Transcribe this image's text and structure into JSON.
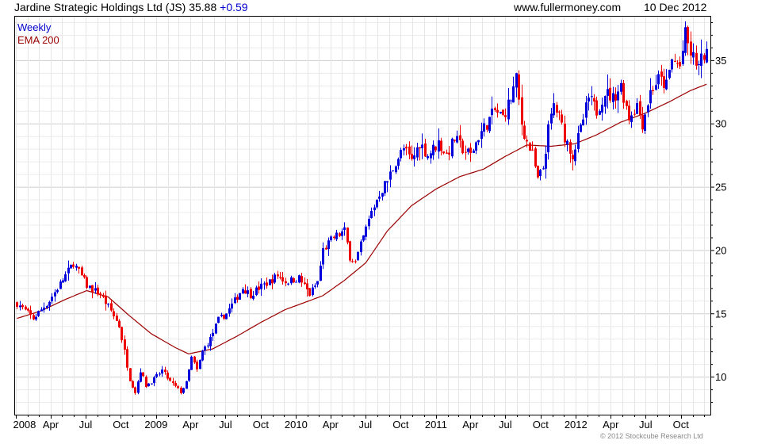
{
  "header": {
    "symbol_text": "Jardine Strategic Holdings Ltd (JS) 35.88",
    "change_text": "+0.59",
    "site": "www.fullermoney.com",
    "date": "10 Dec 2012"
  },
  "legend": {
    "weekly": "Weekly",
    "ema": "EMA 200"
  },
  "copyright": "© 2012 Stockcube Research Ltd",
  "colors": {
    "up": "#0000dd",
    "down": "#ee0000",
    "ema": "#9b0000",
    "grid": "#dcdcdc",
    "axis": "#000000"
  },
  "chart_data": {
    "type": "candlestick",
    "interval": "weekly",
    "y_ticks": [
      10,
      15,
      20,
      25,
      30,
      35
    ],
    "ylim": [
      7,
      38.5
    ],
    "x_tick_labels": [
      "2008",
      "Apr",
      "Jul",
      "Oct",
      "2009",
      "Apr",
      "Jul",
      "Oct",
      "2010",
      "Apr",
      "Jul",
      "Oct",
      "2011",
      "Apr",
      "Jul",
      "Oct",
      "2012",
      "Apr",
      "Jul",
      "Oct"
    ],
    "close_anchors": [
      [
        "2008-01-04",
        15.8
      ],
      [
        "2008-02-15",
        14.6
      ],
      [
        "2008-03-28",
        16.0
      ],
      [
        "2008-05-09",
        18.0
      ],
      [
        "2008-05-30",
        19.0
      ],
      [
        "2008-07-04",
        17.2
      ],
      [
        "2008-08-08",
        16.5
      ],
      [
        "2008-09-05",
        15.2
      ],
      [
        "2008-09-26",
        14.0
      ],
      [
        "2008-10-10",
        12.0
      ],
      [
        "2008-10-24",
        9.8
      ],
      [
        "2008-11-07",
        8.8
      ],
      [
        "2008-11-21",
        10.5
      ],
      [
        "2008-12-05",
        9.3
      ],
      [
        "2008-12-26",
        9.8
      ],
      [
        "2009-01-16",
        10.5
      ],
      [
        "2009-02-06",
        9.6
      ],
      [
        "2009-03-06",
        8.8
      ],
      [
        "2009-03-20",
        9.5
      ],
      [
        "2009-04-03",
        11.5
      ],
      [
        "2009-04-17",
        10.5
      ],
      [
        "2009-05-01",
        12.0
      ],
      [
        "2009-05-22",
        13.0
      ],
      [
        "2009-06-12",
        14.5
      ],
      [
        "2009-07-03",
        15.0
      ],
      [
        "2009-07-24",
        16.0
      ],
      [
        "2009-08-14",
        17.0
      ],
      [
        "2009-09-04",
        16.5
      ],
      [
        "2009-09-25",
        17.0
      ],
      [
        "2009-10-23",
        17.5
      ],
      [
        "2009-11-13",
        18.0
      ],
      [
        "2009-12-04",
        17.5
      ],
      [
        "2010-01-08",
        17.8
      ],
      [
        "2010-02-05",
        16.5
      ],
      [
        "2010-02-26",
        17.5
      ],
      [
        "2010-03-12",
        20.0
      ],
      [
        "2010-04-09",
        21.0
      ],
      [
        "2010-05-07",
        21.5
      ],
      [
        "2010-05-21",
        19.5
      ],
      [
        "2010-06-04",
        19.0
      ],
      [
        "2010-06-25",
        21.0
      ],
      [
        "2010-07-16",
        23.0
      ],
      [
        "2010-08-06",
        24.5
      ],
      [
        "2010-08-27",
        25.5
      ],
      [
        "2010-09-17",
        27.0
      ],
      [
        "2010-10-08",
        28.0
      ],
      [
        "2010-10-29",
        27.0
      ],
      [
        "2010-11-19",
        28.5
      ],
      [
        "2010-12-10",
        27.5
      ],
      [
        "2011-01-07",
        28.5
      ],
      [
        "2011-01-28",
        27.5
      ],
      [
        "2011-02-18",
        28.8
      ],
      [
        "2011-03-11",
        28.0
      ],
      [
        "2011-04-01",
        27.5
      ],
      [
        "2011-04-22",
        29.0
      ],
      [
        "2011-05-13",
        30.0
      ],
      [
        "2011-06-03",
        31.0
      ],
      [
        "2011-06-24",
        30.5
      ],
      [
        "2011-07-15",
        32.0
      ],
      [
        "2011-07-29",
        33.5
      ],
      [
        "2011-08-12",
        30.0
      ],
      [
        "2011-08-26",
        28.5
      ],
      [
        "2011-09-09",
        27.5
      ],
      [
        "2011-09-23",
        25.5
      ],
      [
        "2011-10-07",
        26.5
      ],
      [
        "2011-10-21",
        29.5
      ],
      [
        "2011-11-04",
        31.5
      ],
      [
        "2011-11-18",
        30.5
      ],
      [
        "2011-12-02",
        29.0
      ],
      [
        "2011-12-23",
        27.5
      ],
      [
        "2012-01-13",
        29.5
      ],
      [
        "2012-02-03",
        32.0
      ],
      [
        "2012-02-24",
        31.0
      ],
      [
        "2012-03-16",
        32.5
      ],
      [
        "2012-04-06",
        32.0
      ],
      [
        "2012-04-27",
        33.0
      ],
      [
        "2012-05-18",
        30.5
      ],
      [
        "2012-06-08",
        31.5
      ],
      [
        "2012-06-22",
        30.0
      ],
      [
        "2012-07-13",
        32.5
      ],
      [
        "2012-08-03",
        33.5
      ],
      [
        "2012-08-24",
        33.0
      ],
      [
        "2012-09-07",
        35.0
      ],
      [
        "2012-09-28",
        34.5
      ],
      [
        "2012-10-12",
        37.0
      ],
      [
        "2012-10-26",
        35.5
      ],
      [
        "2012-11-16",
        34.5
      ],
      [
        "2012-12-07",
        35.88
      ]
    ],
    "ema_anchors": [
      [
        "2008-01-04",
        14.6
      ],
      [
        "2008-03-07",
        15.2
      ],
      [
        "2008-05-09",
        16.1
      ],
      [
        "2008-07-04",
        16.8
      ],
      [
        "2008-08-29",
        16.3
      ],
      [
        "2008-10-24",
        14.8
      ],
      [
        "2008-12-19",
        13.4
      ],
      [
        "2009-02-20",
        12.3
      ],
      [
        "2009-03-27",
        11.8
      ],
      [
        "2009-05-29",
        12.2
      ],
      [
        "2009-07-31",
        13.2
      ],
      [
        "2009-10-02",
        14.3
      ],
      [
        "2009-12-04",
        15.3
      ],
      [
        "2010-02-05",
        16.0
      ],
      [
        "2010-03-12",
        16.4
      ],
      [
        "2010-05-07",
        17.6
      ],
      [
        "2010-07-02",
        19.0
      ],
      [
        "2010-08-27",
        21.5
      ],
      [
        "2010-10-29",
        23.5
      ],
      [
        "2010-12-31",
        24.8
      ],
      [
        "2011-03-04",
        25.8
      ],
      [
        "2011-05-06",
        26.4
      ],
      [
        "2011-07-01",
        27.4
      ],
      [
        "2011-08-26",
        28.3
      ],
      [
        "2011-10-28",
        28.2
      ],
      [
        "2011-12-30",
        28.4
      ],
      [
        "2012-02-24",
        29.1
      ],
      [
        "2012-04-27",
        30.1
      ],
      [
        "2012-06-29",
        30.8
      ],
      [
        "2012-08-31",
        31.7
      ],
      [
        "2012-10-26",
        32.6
      ],
      [
        "2012-12-07",
        33.1
      ]
    ]
  }
}
